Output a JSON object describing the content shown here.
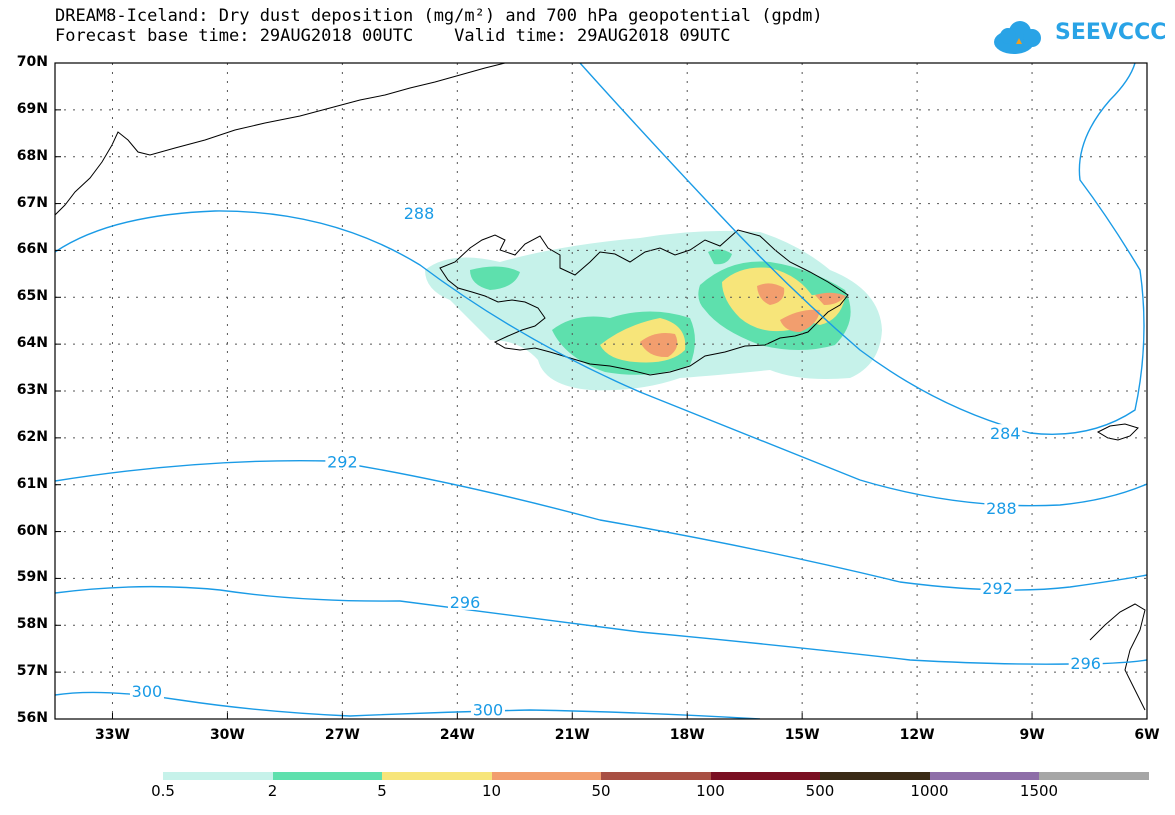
{
  "header": {
    "title_line1": "DREAM8-Iceland: Dry dust deposition (mg/m²) and 700 hPa geopotential (gpdm)",
    "title_line2": "Forecast base time: 29AUG2018 00UTC    Valid time: 29AUG2018 09UTC",
    "logo_text": "SEEVCCC"
  },
  "map": {
    "lat_labels": [
      "70N",
      "69N",
      "68N",
      "67N",
      "66N",
      "65N",
      "64N",
      "63N",
      "62N",
      "61N",
      "60N",
      "59N",
      "58N",
      "57N",
      "56N"
    ],
    "lon_labels": [
      "33W",
      "30W",
      "27W",
      "24W",
      "21W",
      "18W",
      "15W",
      "12W",
      "9W",
      "6W"
    ],
    "lat_range": [
      56,
      70
    ],
    "lon_range": [
      -34.5,
      -6
    ],
    "contour_labels": [
      {
        "text": "288",
        "lon": -25,
        "lat": 66.8
      },
      {
        "text": "292",
        "lon": -27,
        "lat": 61.5
      },
      {
        "text": "296",
        "lon": -23.8,
        "lat": 58.5
      },
      {
        "text": "300",
        "lon": -32.1,
        "lat": 56.6
      },
      {
        "text": "300",
        "lon": -23.2,
        "lat": 56.2
      },
      {
        "text": "284",
        "lon": -9.7,
        "lat": 62.1
      },
      {
        "text": "288",
        "lon": -9.8,
        "lat": 60.5
      },
      {
        "text": "292",
        "lon": -9.9,
        "lat": 58.8
      },
      {
        "text": "296",
        "lon": -7.6,
        "lat": 57.2
      }
    ],
    "colors": {
      "contour": "#1a9be6",
      "coast": "#000000",
      "grid": "#555555"
    }
  },
  "colorbar": {
    "labels": [
      "0.5",
      "2",
      "5",
      "10",
      "50",
      "100",
      "500",
      "1000",
      "1500"
    ],
    "colors": [
      "#c6f2ea",
      "#5ee0ad",
      "#f7e57a",
      "#f29e6e",
      "#a84f43",
      "#7a0f22",
      "#3a2a16",
      "#8e6ea8",
      "#a6a6a6"
    ]
  }
}
